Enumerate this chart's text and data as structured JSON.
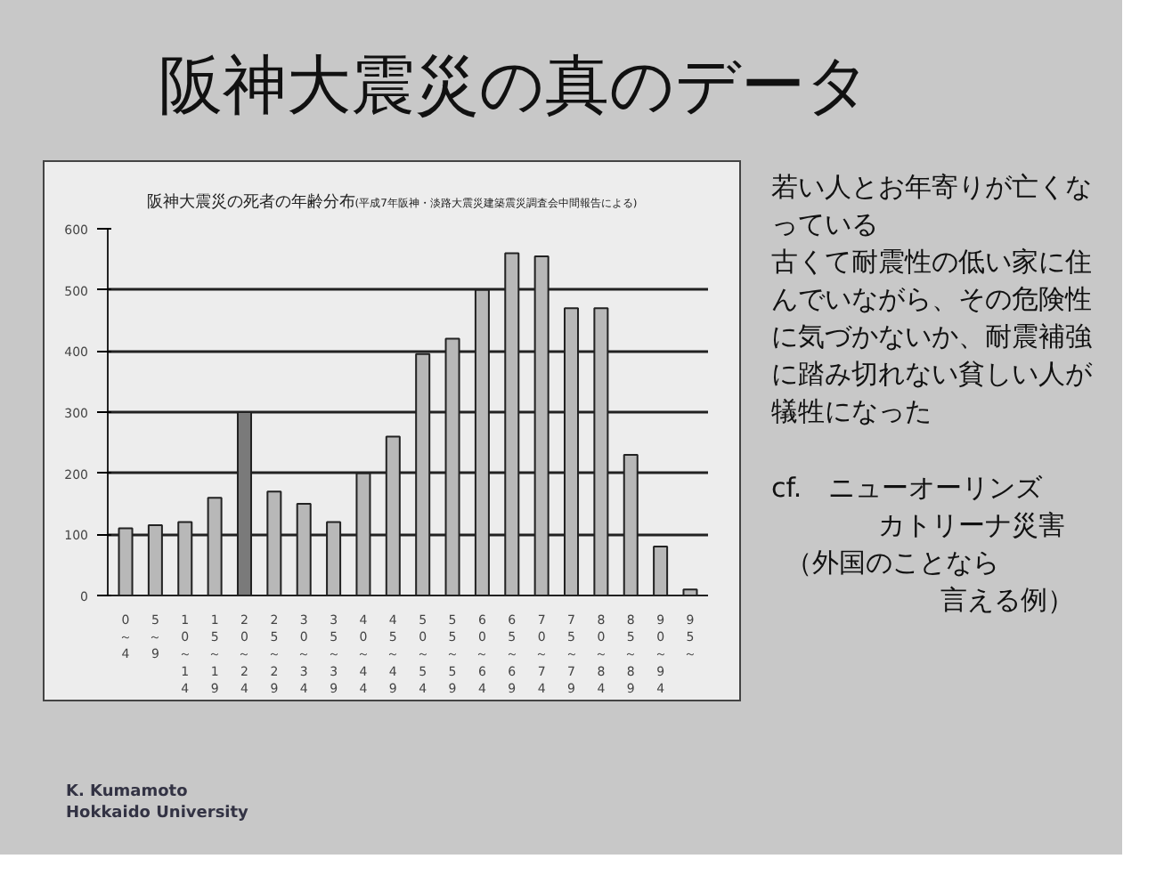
{
  "chart_data": {
    "type": "bar",
    "title": "阪神大震災の死者の年齢分布",
    "subtitle": "(平成7年阪神・淡路大震災建築震災調査会中間報告による)",
    "categories": [
      "0～4",
      "5～9",
      "10～14",
      "15～19",
      "20～24",
      "25～29",
      "30～34",
      "35～39",
      "40～44",
      "45～49",
      "50～54",
      "55～59",
      "60～64",
      "65～69",
      "70～74",
      "75～79",
      "80～84",
      "85～89",
      "90～94",
      "95～"
    ],
    "values": [
      110,
      115,
      120,
      160,
      300,
      170,
      150,
      120,
      200,
      260,
      395,
      420,
      500,
      560,
      555,
      470,
      470,
      230,
      80,
      10
    ],
    "colors": [
      "#b8b8b8",
      "#b8b8b8",
      "#b8b8b8",
      "#b8b8b8",
      "#7a7a7a",
      "#b8b8b8",
      "#b8b8b8",
      "#b8b8b8",
      "#b8b8b8",
      "#b8b8b8",
      "#b8b8b8",
      "#b8b8b8",
      "#b8b8b8",
      "#b8b8b8",
      "#b8b8b8",
      "#b8b8b8",
      "#b8b8b8",
      "#b8b8b8",
      "#b8b8b8",
      "#b8b8b8"
    ],
    "ylim": [
      0,
      600
    ],
    "yticks": [
      0,
      100,
      200,
      300,
      400,
      500,
      600
    ],
    "grid": "y",
    "annotations": [
      "阪神大震災の真のデータ",
      "若い人とお年寄りが亡くなっている",
      "古くて耐震性の低い家に住んでいながら、その危険性に気づかないか、耐震補強に踏み切れない貧しい人が犠牲になった",
      "cf.　ニューオーリンズ",
      "カトリーナ災害",
      "（外国のことなら",
      "言える例）",
      "K. Kumamoto",
      "Hokkaido University"
    ]
  }
}
